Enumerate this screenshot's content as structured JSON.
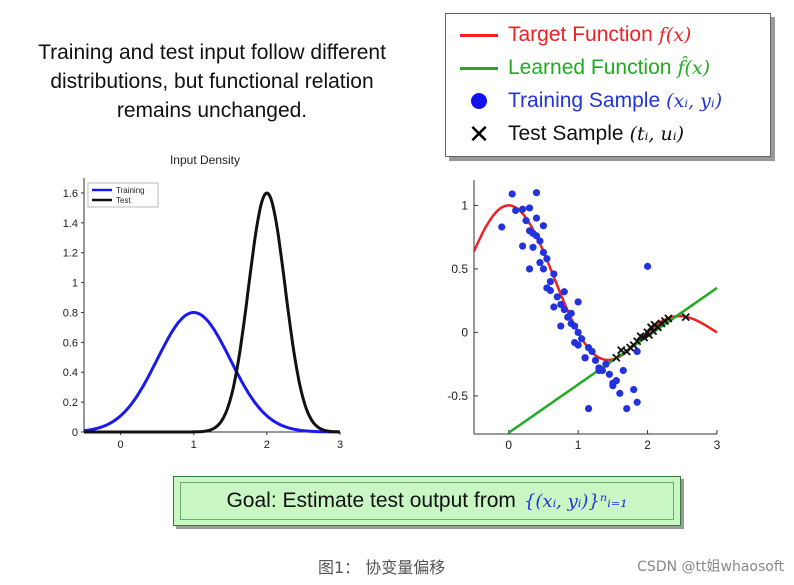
{
  "headline": "Training and test input follow different distributions, but functional relation remains unchanged.",
  "legend": {
    "items": [
      {
        "label": "Target Function",
        "math": "f(x)",
        "color": "#ee2222",
        "symbol": "line"
      },
      {
        "label": "Learned Function",
        "math": "f̂(x)",
        "color": "#22aa22",
        "symbol": "line"
      },
      {
        "label": "Training Sample",
        "math": "(xᵢ, yᵢ)",
        "color": "#2233dd",
        "symbol": "dot"
      },
      {
        "label": "Test Sample",
        "math": "(tᵢ, uᵢ)",
        "color": "#111111",
        "symbol": "x"
      }
    ]
  },
  "goal": {
    "label": "Goal: Estimate test output from",
    "math": "{(xᵢ, yᵢ)}ⁿᵢ₌₁"
  },
  "caption": "图1：  协变量偏移",
  "watermark": "CSDN @tt姐whaosoft",
  "chart_data": [
    {
      "type": "line",
      "title": "Input Density",
      "xlim": [
        -0.5,
        3
      ],
      "ylim": [
        0,
        1.7
      ],
      "xticks": [
        0,
        1,
        2,
        3
      ],
      "yticks": [
        0,
        0.2,
        0.4,
        0.6,
        0.8,
        1,
        1.2,
        1.4,
        1.6
      ],
      "legend_position": "top-left",
      "series": [
        {
          "name": "Training",
          "color": "#1a1aee",
          "distribution": "normal",
          "mean": 1,
          "std": 0.5,
          "peak": 0.8
        },
        {
          "name": "Test",
          "color": "#111111",
          "distribution": "normal",
          "mean": 2,
          "std": 0.25,
          "peak": 1.6
        }
      ]
    },
    {
      "type": "scatter",
      "xlim": [
        -0.5,
        3
      ],
      "ylim": [
        -0.8,
        1.2
      ],
      "xticks": [
        0,
        1,
        2,
        3
      ],
      "yticks": [
        -0.5,
        0,
        0.5,
        1
      ],
      "target_function": {
        "color": "#ee2222",
        "x_range": [
          -0.5,
          3
        ],
        "formula": "sinc(x)"
      },
      "learned_function": {
        "color": "#22aa22",
        "x_range": [
          0,
          3
        ],
        "slope": 0.38,
        "intercept": -0.79
      },
      "training_samples": {
        "color": "#2233dd",
        "x": [
          -0.1,
          0.05,
          0.1,
          0.2,
          0.25,
          0.3,
          0.3,
          0.35,
          0.35,
          0.4,
          0.4,
          0.45,
          0.5,
          0.5,
          0.55,
          0.6,
          0.65,
          0.6,
          0.7,
          0.75,
          0.8,
          0.85,
          0.9,
          0.9,
          0.95,
          1.0,
          1.0,
          1.05,
          1.1,
          1.15,
          1.2,
          1.25,
          1.3,
          1.35,
          1.4,
          1.45,
          1.5,
          1.55,
          1.6,
          1.7,
          1.8,
          1.85,
          0.3,
          0.45,
          0.55,
          0.65,
          0.8,
          0.95,
          1.0,
          1.1,
          1.3,
          1.5,
          1.65,
          1.85,
          2.0,
          0.4,
          0.5,
          0.75,
          1.15,
          0.2
        ],
        "y": [
          0.83,
          1.09,
          0.96,
          0.97,
          0.88,
          0.8,
          0.98,
          0.67,
          0.78,
          0.76,
          0.9,
          0.72,
          0.63,
          0.5,
          0.58,
          0.4,
          0.46,
          0.33,
          0.28,
          0.22,
          0.18,
          0.12,
          0.15,
          0.07,
          0.05,
          0.0,
          -0.1,
          -0.05,
          -0.2,
          -0.12,
          -0.15,
          -0.22,
          -0.28,
          -0.3,
          -0.25,
          -0.33,
          -0.4,
          -0.38,
          -0.48,
          -0.6,
          -0.45,
          -0.55,
          0.5,
          0.55,
          0.35,
          0.2,
          0.32,
          -0.08,
          0.24,
          -0.2,
          -0.3,
          -0.42,
          -0.3,
          -0.15,
          0.52,
          1.1,
          0.84,
          0.05,
          -0.6,
          0.68
        ]
      },
      "test_samples": {
        "color": "#111111",
        "x": [
          1.55,
          1.62,
          1.7,
          1.75,
          1.8,
          1.85,
          1.9,
          1.95,
          2.0,
          2.02,
          2.05,
          2.08,
          2.1,
          2.15,
          2.2,
          2.25,
          2.3,
          2.55
        ],
        "y": [
          -0.2,
          -0.14,
          -0.15,
          -0.12,
          -0.1,
          -0.07,
          -0.03,
          -0.04,
          0.0,
          -0.02,
          0.04,
          0.01,
          0.06,
          0.04,
          0.07,
          0.09,
          0.11,
          0.12
        ]
      }
    }
  ]
}
